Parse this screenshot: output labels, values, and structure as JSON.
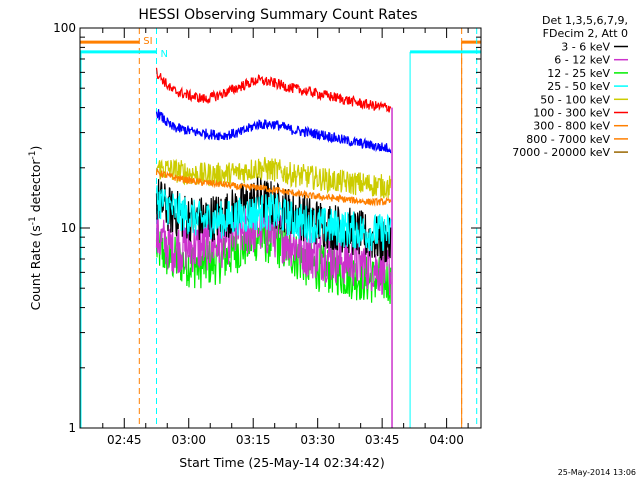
{
  "chart_data": {
    "type": "line",
    "title": "HESSI Observing Summary Count Rates",
    "ylabel_pre": "Count Rate (s",
    "ylabel_sup": "-1",
    "ylabel_post": " detector",
    "ylabel_sup2": "-1",
    "ylabel_close": ")",
    "xlabel": "Start Time (25-May-14 02:34:42)",
    "timestamp": "25-May-2014 13:06",
    "y_scale": "log",
    "ylim": [
      1,
      100
    ],
    "xlim_minutes": [
      34.7,
      128.0
    ],
    "y_ticks": [
      {
        "value": 1,
        "label": "1"
      },
      {
        "value": 10,
        "label": "10"
      },
      {
        "value": 100,
        "label": "100"
      }
    ],
    "x_ticks": [
      {
        "minute": 45,
        "label": "02:45"
      },
      {
        "minute": 60,
        "label": "03:00"
      },
      {
        "minute": 75,
        "label": "03:15"
      },
      {
        "minute": 90,
        "label": "03:30"
      },
      {
        "minute": 105,
        "label": "03:45"
      },
      {
        "minute": 120,
        "label": "04:00"
      }
    ],
    "legend_header": [
      "Det 1,3,5,6,7,9,",
      "FDecim 2, Att 0"
    ],
    "legend_position": "right",
    "series": [
      {
        "name": "3 - 6 keV",
        "color": "#000000",
        "noise": 0.28,
        "points": [
          [
            52.5,
            14
          ],
          [
            56,
            12
          ],
          [
            62,
            11
          ],
          [
            68,
            11.5
          ],
          [
            72,
            12.5
          ],
          [
            76,
            14
          ],
          [
            80,
            13
          ],
          [
            84,
            12
          ],
          [
            88,
            11
          ],
          [
            95,
            10
          ],
          [
            102,
            9
          ],
          [
            107,
            8.5
          ]
        ]
      },
      {
        "name": "6 - 12 keV",
        "color": "#cc33cc",
        "noise": 0.3,
        "points": [
          [
            52.5,
            9
          ],
          [
            56,
            8
          ],
          [
            62,
            8
          ],
          [
            68,
            8.5
          ],
          [
            72,
            9.5
          ],
          [
            76,
            10
          ],
          [
            80,
            9.5
          ],
          [
            84,
            8.5
          ],
          [
            88,
            7.5
          ],
          [
            95,
            7
          ],
          [
            102,
            6.5
          ],
          [
            107,
            6
          ]
        ]
      },
      {
        "name": "12 - 25 keV",
        "color": "#00ee00",
        "noise": 0.28,
        "points": [
          [
            52.5,
            8
          ],
          [
            56,
            7
          ],
          [
            62,
            6.5
          ],
          [
            68,
            7
          ],
          [
            72,
            8
          ],
          [
            76,
            9
          ],
          [
            80,
            8.5
          ],
          [
            84,
            7.5
          ],
          [
            88,
            6.5
          ],
          [
            95,
            6
          ],
          [
            102,
            5.5
          ],
          [
            107,
            5.5
          ]
        ]
      },
      {
        "name": "25 - 50 keV",
        "color": "#00ffff",
        "noise": 0.22,
        "points": [
          [
            52.5,
            14
          ],
          [
            56,
            12.5
          ],
          [
            62,
            11
          ],
          [
            68,
            11
          ],
          [
            72,
            11.5
          ],
          [
            76,
            12
          ],
          [
            80,
            12
          ],
          [
            84,
            11
          ],
          [
            88,
            10.5
          ],
          [
            95,
            10
          ],
          [
            102,
            9.5
          ],
          [
            107,
            9.5
          ]
        ]
      },
      {
        "name": "50 - 100 keV",
        "color": "#cccc00",
        "noise": 0.14,
        "points": [
          [
            52.5,
            20
          ],
          [
            56,
            19.5
          ],
          [
            62,
            18.5
          ],
          [
            68,
            18.5
          ],
          [
            72,
            19
          ],
          [
            76,
            20
          ],
          [
            80,
            19.5
          ],
          [
            84,
            18.5
          ],
          [
            88,
            18
          ],
          [
            95,
            17
          ],
          [
            102,
            16.5
          ],
          [
            107,
            16
          ]
        ]
      },
      {
        "name": "100 - 300 keV",
        "color": "#ff0000",
        "noise": 0.06,
        "points": [
          [
            52.5,
            60
          ],
          [
            56,
            49
          ],
          [
            60,
            46
          ],
          [
            64,
            44
          ],
          [
            68,
            47
          ],
          [
            72,
            51
          ],
          [
            76,
            55
          ],
          [
            80,
            53
          ],
          [
            84,
            50
          ],
          [
            88,
            48
          ],
          [
            92,
            46
          ],
          [
            96,
            44
          ],
          [
            100,
            42
          ],
          [
            104,
            40.5
          ],
          [
            107,
            40
          ]
        ]
      },
      {
        "name": "300 - 800 keV",
        "color": "#ff7f00",
        "noise": 0.04,
        "points": [
          [
            52.5,
            19
          ],
          [
            56,
            18
          ],
          [
            62,
            17
          ],
          [
            68,
            16.5
          ],
          [
            72,
            16
          ],
          [
            76,
            16
          ],
          [
            80,
            15.5
          ],
          [
            84,
            15
          ],
          [
            88,
            14.5
          ],
          [
            95,
            14
          ],
          [
            102,
            13.5
          ],
          [
            107,
            13.5
          ]
        ]
      },
      {
        "name": "800 - 7000 keV",
        "color": "#ff7f00",
        "noise": 0.0,
        "points": []
      },
      {
        "name": "7000 - 20000 keV",
        "color": "#996600",
        "noise": 0.0,
        "points": []
      },
      {
        "name": "",
        "color": "#0000ff",
        "noise": 0.06,
        "points": [
          [
            52.5,
            38
          ],
          [
            56,
            32
          ],
          [
            62,
            30
          ],
          [
            68,
            29
          ],
          [
            72,
            30
          ],
          [
            76,
            33
          ],
          [
            80,
            33
          ],
          [
            84,
            31
          ],
          [
            88,
            30
          ],
          [
            92,
            29
          ],
          [
            96,
            27.5
          ],
          [
            100,
            26.5
          ],
          [
            104,
            25.5
          ],
          [
            107,
            25
          ]
        ]
      }
    ],
    "flags": [
      {
        "label": "SI",
        "color": "#ff7f00",
        "level": 85,
        "bars": [
          [
            34.7,
            48.5
          ],
          [
            123.5,
            128
          ]
        ],
        "vlines": [
          48.5,
          123.5
        ],
        "dashed": [
          48.5,
          123.5
        ],
        "solid": [
          123.5
        ]
      },
      {
        "label": "N",
        "color": "#00ffff",
        "level": 76,
        "bars": [
          [
            34.7,
            52.5
          ],
          [
            111.5,
            128
          ]
        ],
        "vlines": [
          52.5,
          111.5
        ],
        "dashed": [
          52.5,
          127.0
        ],
        "solid": [
          34.7,
          111.5
        ]
      }
    ],
    "cutoff_minute": 107.3
  }
}
